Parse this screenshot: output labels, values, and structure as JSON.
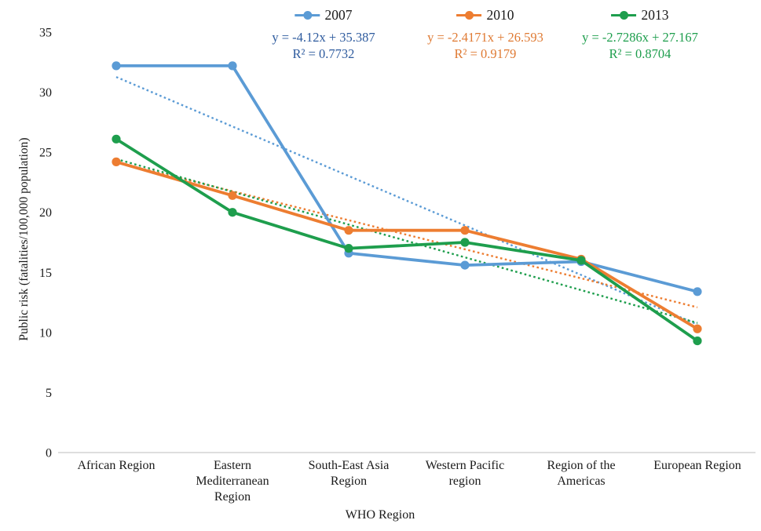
{
  "page": {
    "background": "#FFFFFF"
  },
  "chart_data": {
    "type": "line",
    "title": "",
    "xlabel": "WHO Region",
    "ylabel": "Public risk (fatalities/100,000 population)",
    "categories": [
      "African Region",
      "Eastern Mediterranean Region",
      "South-East Asia Region",
      "Western Pacific region",
      "Region of the Americas",
      "European Region"
    ],
    "categories_wrapped": [
      [
        "African Region"
      ],
      [
        "Eastern",
        "Mediterranean",
        "Region"
      ],
      [
        "South-East Asia",
        "Region"
      ],
      [
        "Western Pacific",
        "region"
      ],
      [
        "Region of the",
        "Americas"
      ],
      [
        "European Region"
      ]
    ],
    "ylim": [
      0,
      35
    ],
    "yticks": [
      0,
      5,
      10,
      15,
      20,
      25,
      30,
      35
    ],
    "grid": false,
    "legend_position": "top-center",
    "axis_color": "#C9C9C9",
    "text_color": "#1A1A1A",
    "series": [
      {
        "name": "2007",
        "color": "#5B9BD5",
        "values": [
          32.2,
          32.2,
          16.6,
          15.6,
          15.9,
          13.4
        ],
        "trendline": {
          "type": "linear",
          "slope": -4.12,
          "intercept": 35.387,
          "equation": "y = -4.12x + 35.387",
          "r2": "R² = 0.7732",
          "text_color": "#2E5B9E"
        }
      },
      {
        "name": "2010",
        "color": "#ED7D31",
        "values": [
          24.2,
          21.4,
          18.5,
          18.5,
          16.1,
          10.3
        ],
        "trendline": {
          "type": "linear",
          "slope": -2.4171,
          "intercept": 26.593,
          "equation": "y = -2.4171x + 26.593",
          "r2": "R² = 0.9179",
          "text_color": "#DF7A33"
        }
      },
      {
        "name": "2013",
        "color": "#1E9E4D",
        "values": [
          26.1,
          20.0,
          17.0,
          17.5,
          16.0,
          9.3
        ],
        "trendline": {
          "type": "linear",
          "slope": -2.7286,
          "intercept": 27.167,
          "equation": "y = -2.7286x + 27.167",
          "r2": "R² = 0.8704",
          "text_color": "#1E9E4D"
        }
      }
    ]
  }
}
